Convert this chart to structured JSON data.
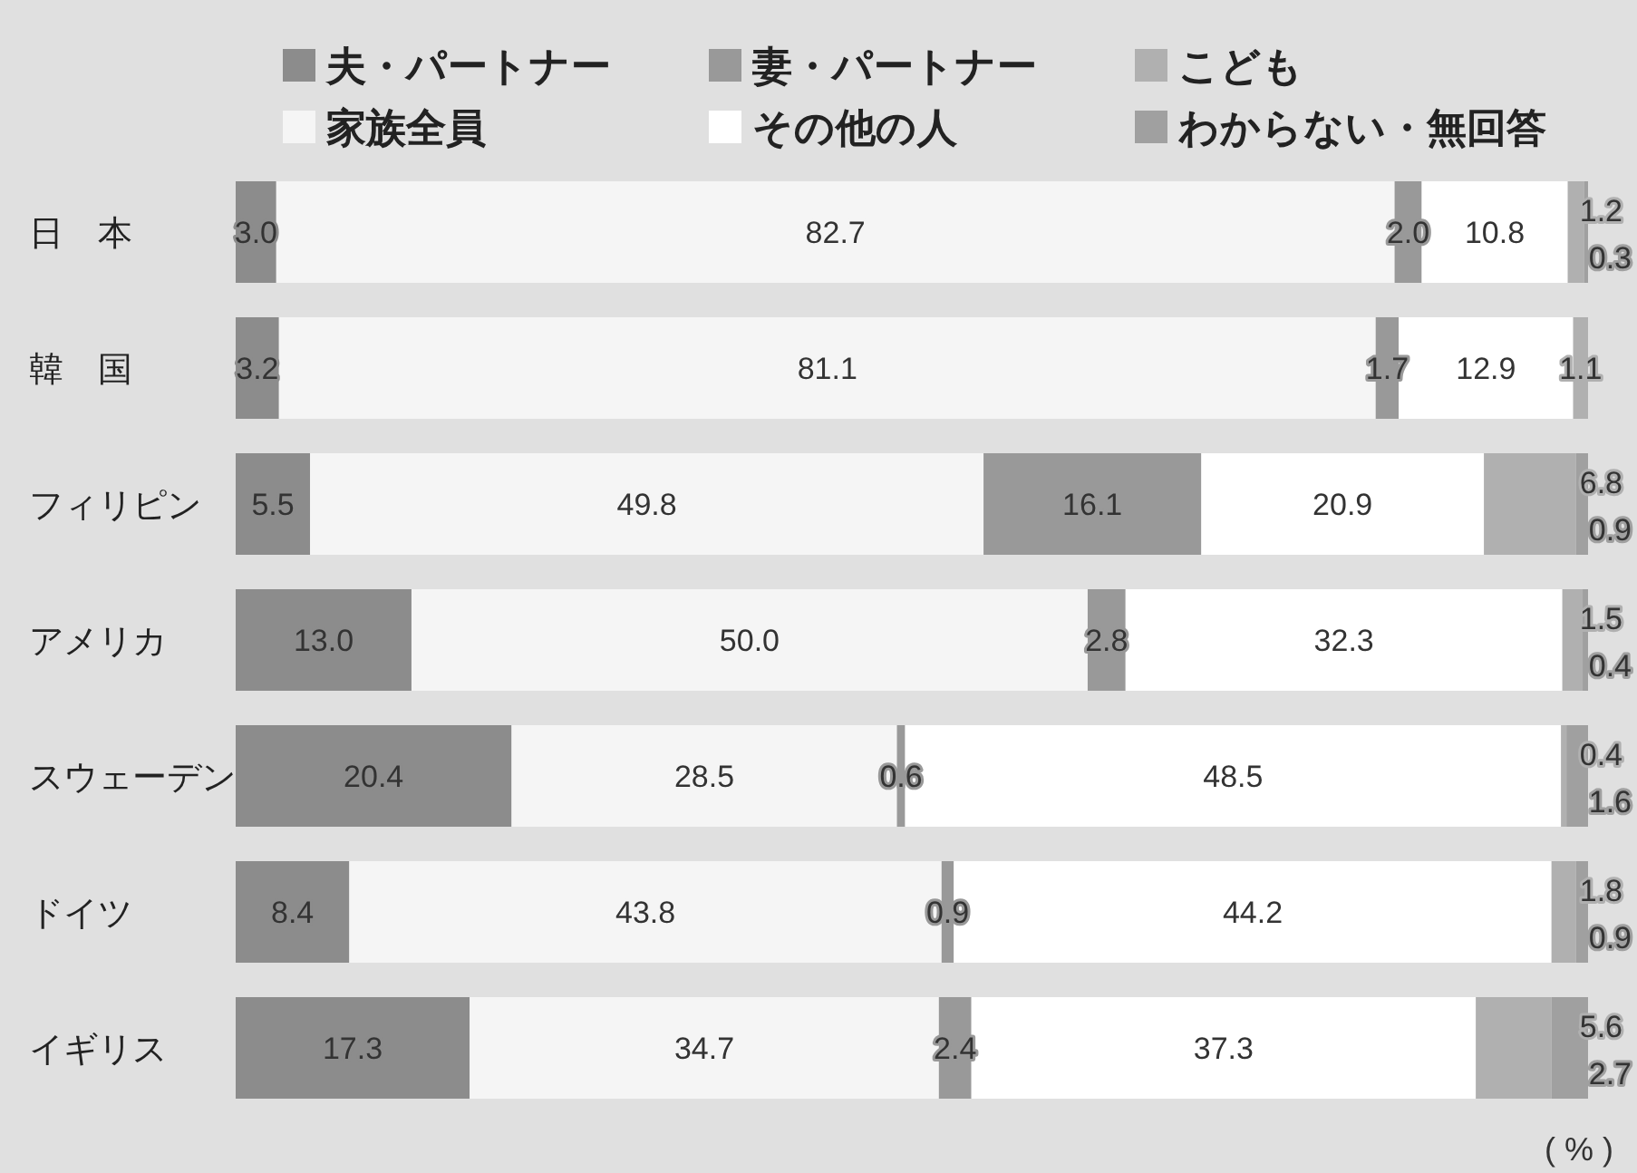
{
  "chart_data": {
    "type": "bar",
    "orientation": "horizontal",
    "stacked": true,
    "categories": [
      "日　本",
      "韓　国",
      "フィリピン",
      "アメリカ",
      "スウェーデン",
      "ドイツ",
      "イギリス"
    ],
    "series": [
      {
        "name": "夫・パートナー",
        "color": "#8c8c8c",
        "values": [
          3.0,
          3.2,
          5.5,
          13.0,
          20.4,
          8.4,
          17.3
        ],
        "value_labels": [
          "3.0",
          "3.2",
          "5.5",
          "13.0",
          "20.4",
          "8.4",
          "17.3"
        ]
      },
      {
        "name": "家族全員",
        "color": "#f5f5f5",
        "values": [
          82.7,
          81.1,
          49.8,
          50.0,
          28.5,
          43.8,
          34.7
        ],
        "value_labels": [
          "82.7",
          "81.1",
          "49.8",
          "50.0",
          "28.5",
          "43.8",
          "34.7"
        ]
      },
      {
        "name": "妻・パートナー",
        "color": "#999999",
        "values": [
          2.0,
          1.7,
          16.1,
          2.8,
          0.6,
          0.9,
          2.4
        ],
        "value_labels": [
          "2.0",
          "1.7",
          "16.1",
          "2.8",
          "0.6",
          "0.9",
          "2.4"
        ]
      },
      {
        "name": "その他の人",
        "color": "#ffffff",
        "values": [
          10.8,
          12.9,
          20.9,
          32.3,
          48.5,
          44.2,
          37.3
        ],
        "value_labels": [
          "10.8",
          "12.9",
          "20.9",
          "32.3",
          "48.5",
          "44.2",
          "37.3"
        ]
      },
      {
        "name": "こども",
        "color": "#b0b0b0",
        "values": [
          1.2,
          1.1,
          6.8,
          1.5,
          0.4,
          1.8,
          5.6
        ],
        "value_labels": [
          "1.2",
          "1.1",
          "6.8",
          "1.5",
          "0.4",
          "1.8",
          "5.6"
        ]
      },
      {
        "name": "わからない・無回答",
        "color": "#a0a0a0",
        "values": [
          0.3,
          null,
          0.9,
          0.4,
          1.6,
          0.9,
          2.7
        ],
        "value_labels": [
          "0.3",
          null,
          "0.9",
          "0.4",
          "1.6",
          "0.9",
          "2.7"
        ]
      }
    ],
    "xlim": [
      0,
      100
    ],
    "tick_labels": "y",
    "legend": "top",
    "annotations": [
      "( % )"
    ]
  }
}
